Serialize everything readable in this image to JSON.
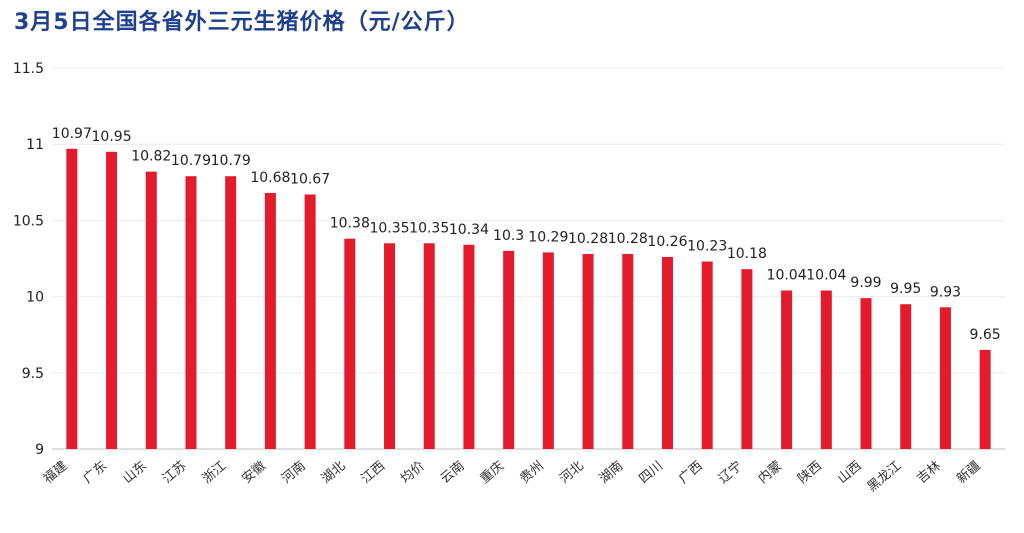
{
  "chart_data": {
    "type": "bar",
    "title": "3月5日全国各省外三元生猪价格（元/公斤）",
    "xlabel": "",
    "ylabel": "",
    "ylim": [
      9,
      11.5
    ],
    "yticks": [
      "9",
      "9.5",
      "10",
      "10.5",
      "11",
      "11.5"
    ],
    "grid": true,
    "bar_color": "#e31b2d",
    "title_color": "#1f3f8f",
    "categories": [
      "福建",
      "广东",
      "山东",
      "江苏",
      "浙江",
      "安徽",
      "河南",
      "湖北",
      "江西",
      "均价",
      "云南",
      "重庆",
      "贵州",
      "河北",
      "湖南",
      "四川",
      "广西",
      "辽宁",
      "内蒙",
      "陕西",
      "山西",
      "黑龙江",
      "吉林",
      "新疆"
    ],
    "values": [
      10.97,
      10.95,
      10.82,
      10.79,
      10.79,
      10.68,
      10.67,
      10.38,
      10.35,
      10.35,
      10.34,
      10.3,
      10.29,
      10.28,
      10.28,
      10.26,
      10.23,
      10.18,
      10.04,
      10.04,
      9.99,
      9.95,
      9.93,
      9.65
    ],
    "data_labels": [
      "10.97",
      "10.95",
      "10.82",
      "10.79",
      "10.79",
      "10.68",
      "10.67",
      "10.38",
      "10.35",
      "10.35",
      "10.34",
      "10.3",
      "10.29",
      "10.28",
      "10.28",
      "10.26",
      "10.23",
      "10.18",
      "10.04",
      "10.04",
      "9.99",
      "9.95",
      "9.93",
      "9.65"
    ]
  }
}
